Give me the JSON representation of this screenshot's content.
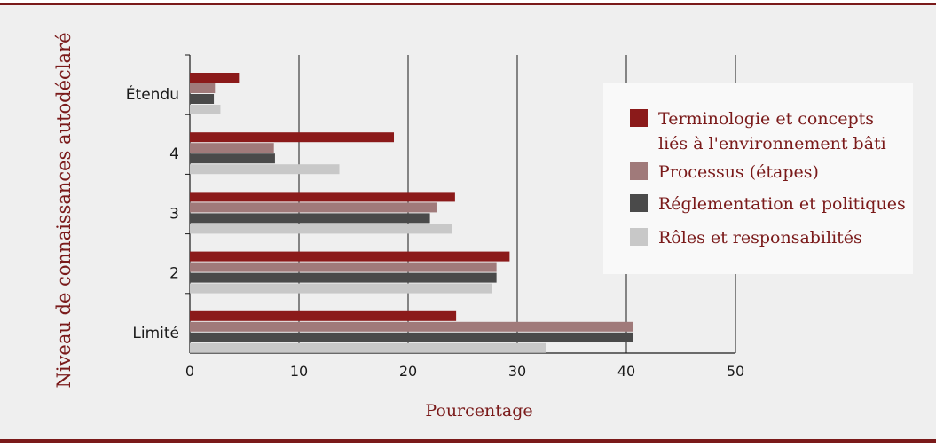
{
  "chart_data": {
    "type": "bar",
    "orientation": "horizontal",
    "ylabel": "Niveau de connaissances autodéclaré",
    "xlabel": "Pourcentage",
    "categories": [
      "Étendu",
      "4",
      "3",
      "2",
      "Limité"
    ],
    "xlim": [
      0,
      50
    ],
    "xticks": [
      "0",
      "10",
      "20",
      "30",
      "40",
      "50"
    ],
    "grid": true,
    "legend_position": "right",
    "series": [
      {
        "name": "Terminologie et concepts\nliés à l'environnement bâti",
        "color": "#8b1a1a",
        "values": [
          4.5,
          18.7,
          24.3,
          29.3,
          24.4
        ]
      },
      {
        "name": "Processus (étapes)",
        "color": "#a07a7a",
        "values": [
          2.3,
          7.7,
          22.6,
          28.1,
          40.6
        ]
      },
      {
        "name": "Réglementation et politiques",
        "color": "#4a4a4a",
        "values": [
          2.2,
          7.8,
          22.0,
          28.1,
          40.6
        ]
      },
      {
        "name": "Rôles et responsabilités",
        "color": "#c8c8c8",
        "values": [
          2.8,
          13.7,
          24.0,
          27.7,
          32.6
        ]
      }
    ]
  }
}
